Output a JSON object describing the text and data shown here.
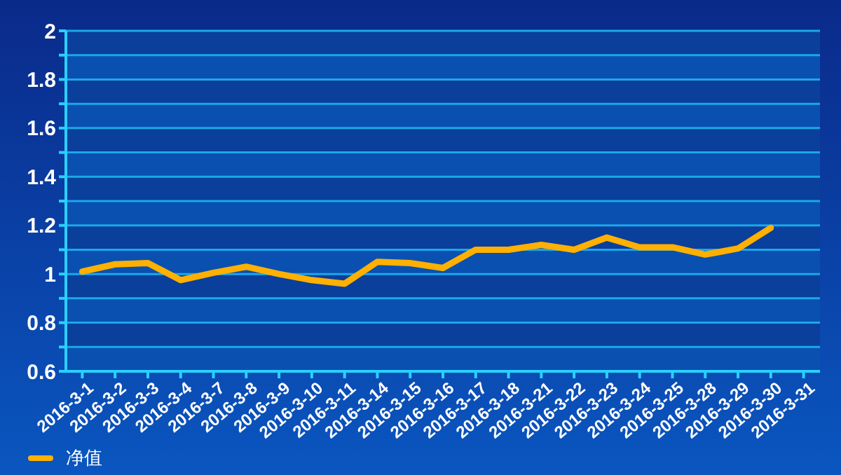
{
  "chart_data": {
    "type": "line",
    "categories": [
      "2016-3-1",
      "2016-3-2",
      "2016-3-3",
      "2016-3-4",
      "2016-3-7",
      "2016-3-8",
      "2016-3-9",
      "2016-3-10",
      "2016-3-11",
      "2016-3-14",
      "2016-3-15",
      "2016-3-16",
      "2016-3-17",
      "2016-3-18",
      "2016-3-21",
      "2016-3-22",
      "2016-3-23",
      "2016-3-24",
      "2016-3-25",
      "2016-3-28",
      "2016-3-29",
      "2016-3-30",
      "2016-3-31"
    ],
    "series": [
      {
        "name": "净值",
        "color": "#ffb000",
        "values": [
          1.01,
          1.04,
          1.045,
          0.975,
          1.005,
          1.03,
          1.0,
          0.975,
          0.96,
          1.05,
          1.045,
          1.025,
          1.1,
          1.1,
          1.12,
          1.1,
          1.15,
          1.11,
          1.11,
          1.08,
          1.105,
          1.19,
          null
        ]
      }
    ],
    "ylim": [
      0.6,
      2
    ],
    "yticks": [
      0.6,
      {
        "value": 0.7,
        "label": null
      },
      0.8,
      {
        "value": 0.9,
        "label": null
      },
      1,
      {
        "value": 1.1,
        "label": null
      },
      1.2,
      {
        "value": 1.3,
        "label": null
      },
      1.4,
      {
        "value": 1.5,
        "label": null
      },
      1.6,
      {
        "value": 1.7,
        "label": null
      },
      1.8,
      {
        "value": 1.9,
        "label": null
      },
      2
    ],
    "grid": "y",
    "legend": "bottom left",
    "marker": "none",
    "line_style": "solid"
  }
}
